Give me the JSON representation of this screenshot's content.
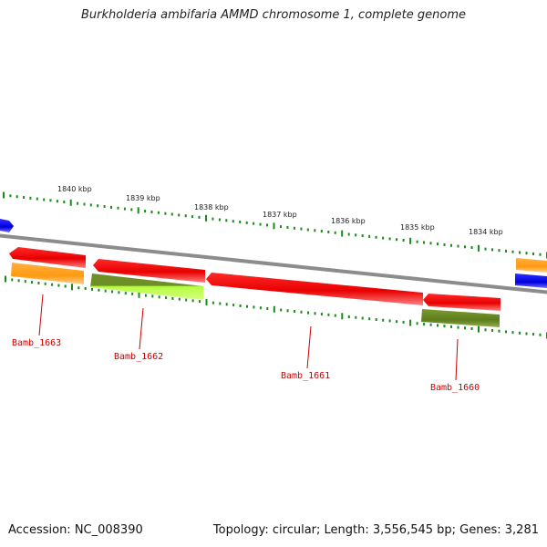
{
  "title": "Burkholderia ambifaria AMMD chromosome 1, complete genome",
  "accession": "Accession: NC_008390",
  "topology": "Topology: circular; Length: 3,556,545 bp; Genes: 3,281",
  "colors": {
    "backbone": "#8c8c8c",
    "tick": "#1a8a1a",
    "gene_label": "#cc0000",
    "red_gene": "#ff1a1a",
    "orange_gene": "#ffa020",
    "olive_gene": "#6b8e23",
    "lime_gene": "#adff2f",
    "blue_gene": "#1010ee"
  },
  "ruler_labels": [
    "1840 kbp",
    "1839 kbp",
    "1838 kbp",
    "1837 kbp",
    "1836 kbp",
    "1835 kbp",
    "1834 kbp"
  ],
  "gene_labels": [
    "Bamb_1663",
    "Bamb_1662",
    "Bamb_1661",
    "Bamb_1660"
  ]
}
